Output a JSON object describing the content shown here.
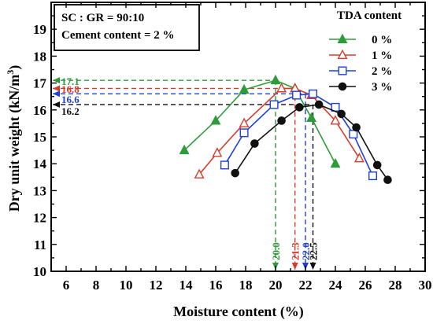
{
  "chart_data": {
    "type": "line",
    "xlabel": "Moisture content (%)",
    "ylabel_main": "Dry unit weight (kN/m",
    "ylabel_sup": "3",
    "ylabel_end": ")",
    "xlim": [
      5,
      30
    ],
    "ylim": [
      10,
      20
    ],
    "xticks": [
      6,
      8,
      10,
      12,
      14,
      16,
      18,
      20,
      22,
      24,
      26,
      28,
      30
    ],
    "yticks": [
      10,
      11,
      12,
      13,
      14,
      15,
      16,
      17,
      18,
      19
    ],
    "info_box": {
      "line1": "SC : GR = 90:10",
      "line2": "Cement content = 2 %"
    },
    "legend": {
      "title": "TDA content",
      "placement": "top-right"
    },
    "series": [
      {
        "name": "0 %",
        "color": "#2e9b3a",
        "marker": "triangle-filled",
        "x": [
          13.9,
          16.0,
          17.9,
          20.0,
          21.3,
          22.4,
          24.0
        ],
        "y": [
          14.5,
          15.6,
          16.75,
          17.1,
          16.8,
          15.7,
          14.0
        ]
      },
      {
        "name": "1 %",
        "color": "#d63c2c",
        "marker": "triangle-open",
        "x": [
          14.9,
          16.1,
          17.9,
          20.4,
          21.3,
          22.4,
          24.0,
          25.6
        ],
        "y": [
          13.6,
          14.4,
          15.5,
          16.8,
          16.8,
          16.55,
          15.6,
          14.2
        ]
      },
      {
        "name": "2 %",
        "color": "#1f3fd8",
        "marker": "square-open",
        "x": [
          16.6,
          17.9,
          19.9,
          21.4,
          22.5,
          24.0,
          25.2,
          26.5
        ],
        "y": [
          13.95,
          15.15,
          16.2,
          16.55,
          16.6,
          16.1,
          15.1,
          13.55
        ]
      },
      {
        "name": "3 %",
        "color": "#111111",
        "marker": "circle-filled",
        "x": [
          17.3,
          18.6,
          20.4,
          21.6,
          22.9,
          24.4,
          25.4,
          26.8,
          27.5
        ],
        "y": [
          13.65,
          14.75,
          15.6,
          16.1,
          16.2,
          15.85,
          15.35,
          13.95,
          13.4
        ]
      }
    ],
    "optimum_markers": [
      {
        "series": "0 %",
        "omc": 20.0,
        "mdd": 17.1,
        "omc_label": "20.0",
        "mdd_label": "17.1"
      },
      {
        "series": "1 %",
        "omc": 21.3,
        "mdd": 16.8,
        "omc_label": "21.3",
        "mdd_label": "16.8"
      },
      {
        "series": "2 %",
        "omc": 22.0,
        "mdd": 16.6,
        "omc_label": "22.0",
        "mdd_label": "16.6"
      },
      {
        "series": "3 %",
        "omc": 22.5,
        "mdd": 16.2,
        "omc_label": "22.5",
        "mdd_label": "16.2"
      }
    ]
  }
}
